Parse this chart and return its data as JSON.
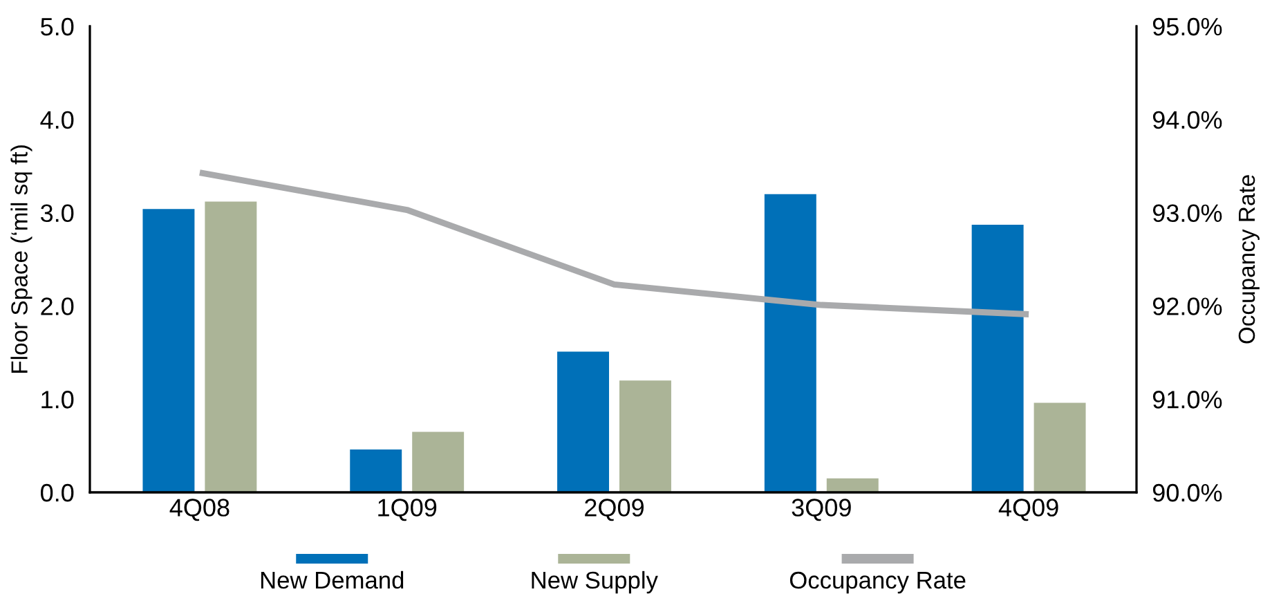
{
  "chart_data": {
    "type": "bar",
    "ylabel": "Floor Space (‘mil sq ft)",
    "y2label": "Occupancy Rate",
    "categories": [
      "4Q08",
      "1Q09",
      "2Q09",
      "3Q09",
      "4Q09"
    ],
    "series": [
      {
        "name": "New Demand",
        "color": "#0070b8",
        "values": [
          3.04,
          0.46,
          1.51,
          3.2,
          2.87
        ]
      },
      {
        "name": "New Supply",
        "color": "#abb497",
        "values": [
          3.12,
          0.65,
          1.2,
          0.15,
          0.96
        ]
      },
      {
        "name": "Occupancy Rate",
        "type": "line",
        "axis": "y2",
        "color": "#a9aaac",
        "values": [
          93.43,
          93.03,
          92.23,
          92.01,
          91.91
        ]
      }
    ],
    "ylim": [
      0,
      5
    ],
    "yticks": [
      {
        "value": 0,
        "label": "0.0"
      },
      {
        "value": 1,
        "label": "1.0"
      },
      {
        "value": 2,
        "label": "2.0"
      },
      {
        "value": 3,
        "label": "3.0"
      },
      {
        "value": 4,
        "label": "4.0"
      },
      {
        "value": 5,
        "label": "5.0"
      }
    ],
    "y2lim": [
      90,
      95
    ],
    "y2ticks": [
      {
        "value": 90,
        "label": "90.0%"
      },
      {
        "value": 91,
        "label": "91.0%"
      },
      {
        "value": 92,
        "label": "92.0%"
      },
      {
        "value": 93,
        "label": "93.0%"
      },
      {
        "value": 94,
        "label": "94.0%"
      },
      {
        "value": 95,
        "label": "95.0%"
      }
    ],
    "legend": "bottom"
  }
}
